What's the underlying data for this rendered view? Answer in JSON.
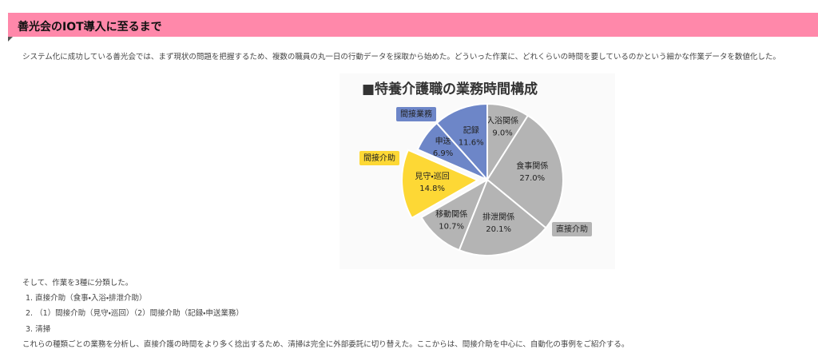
{
  "header": {
    "title": "善光会のIOT導入に至るまで"
  },
  "intro": "システム化に成功している善光会では、まず現状の問題を把握するため、複数の職員の丸一日の行動データを採取から始めた。どういった作業に、どれくらいの時間を要しているのかという細かな作業データを数値化した。",
  "chart_data": {
    "type": "pie",
    "title": "■特養介護職の業務時間構成",
    "categories": [
      "入浴関係",
      "食事関係",
      "排泄関係",
      "移動関係",
      "見守・巡回",
      "申送",
      "記録"
    ],
    "values": [
      9.0,
      27.0,
      20.1,
      10.7,
      14.8,
      6.9,
      11.6
    ],
    "value_labels": [
      "9.0%",
      "27.0%",
      "20.1%",
      "10.7%",
      "14.8%",
      "6.9%",
      "11.6%"
    ],
    "colors": [
      "#b4b4b4",
      "#b4b4b4",
      "#b4b4b4",
      "#b4b4b4",
      "#fdd835",
      "#6d86c8",
      "#6d86c8"
    ],
    "explode": [
      0,
      0,
      0,
      0,
      1,
      0,
      0
    ],
    "groups": [
      {
        "name": "直接介助",
        "color": "#b4b4b4"
      },
      {
        "name": "間接介助",
        "color": "#fdd835"
      },
      {
        "name": "間接業務",
        "color": "#6d86c8"
      }
    ]
  },
  "body": {
    "lead": "そして、作業を3種に分類した。",
    "list": [
      "1. 直接介助（食事・入浴・排泄介助）",
      "2. （1）間接介助（見守・巡回）（2）間接介助（記録・申送業務）",
      "3. 清掃"
    ],
    "closing": "これらの種類ごとの業務を分析し、直接介護の時間をより多く捻出するため、清掃は完全に外部委託に切り替えた。ここからは、間接介助を中心に、自動化の事例をご紹介する。"
  }
}
